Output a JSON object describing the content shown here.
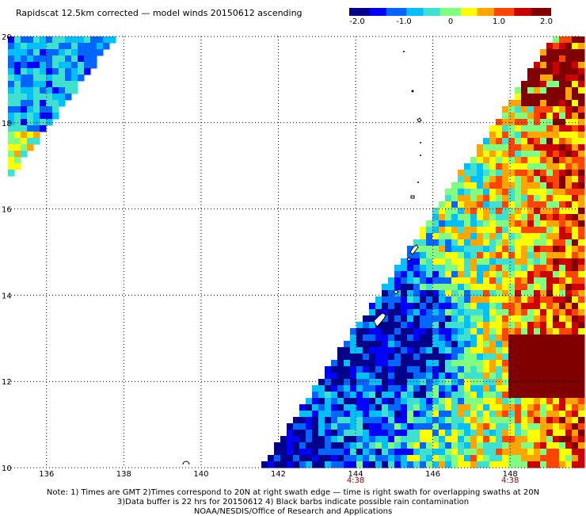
{
  "title": "Rapidscat 12.5km corrected — model winds 20150612 ascending",
  "colorbar": {
    "tick_labels": [
      "-2.0",
      "-1.0",
      "0",
      "1.0",
      "2.0"
    ],
    "tick_values": [
      -2.0,
      -1.0,
      0,
      1.0,
      2.0
    ],
    "colors": [
      "#00008b",
      "#0000ff",
      "#0066ff",
      "#00bfff",
      "#40e0d0",
      "#80ff80",
      "#ffff00",
      "#ffa500",
      "#ff4500",
      "#cc0000",
      "#800000"
    ]
  },
  "map": {
    "lon_range": [
      135,
      149.8
    ],
    "lat_range": [
      10,
      20
    ],
    "lon_ticks": [
      "136",
      "138",
      "140",
      "142",
      "144",
      "146",
      "148"
    ],
    "lat_ticks": [
      "20",
      "18",
      "16",
      "14",
      "12",
      "10"
    ],
    "time_labels": [
      {
        "text": "4:38",
        "lon": 144
      },
      {
        "text": "4:38",
        "lon": 148
      }
    ],
    "time_color": "#8b0000",
    "grid": "dotted"
  },
  "footer": {
    "line1": "Note: 1) Times are GMT 2)Times correspond to 20N at right swath edge — time is right swath for overlapping swaths at 20N",
    "line2": "3)Data buffer is 22 hrs for 20150612 4) Black barbs indicate possible rain contamination",
    "line3": "NOAA/NESDIS/Office of Research and Applications"
  }
}
